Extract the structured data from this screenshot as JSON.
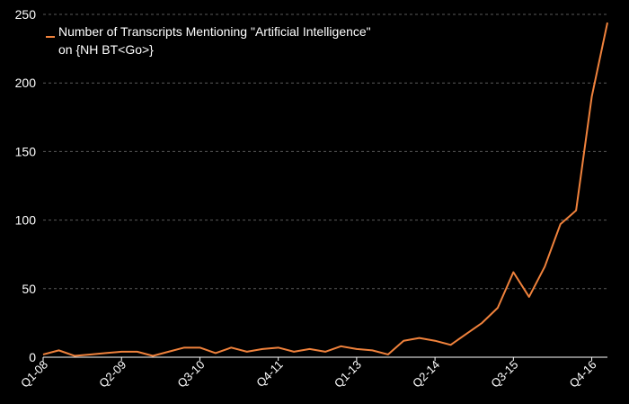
{
  "colors": {
    "background": "#000000",
    "series_line": "#f0823c",
    "text": "#ffffff",
    "grid": "#5a5a5a"
  },
  "chart_data": {
    "type": "line",
    "title": "",
    "xlabel": "",
    "ylabel": "",
    "ylim": [
      0,
      250
    ],
    "yticks": [
      0,
      50,
      100,
      150,
      200,
      250
    ],
    "grid": "horizontal dashed",
    "legend_position": "top-left",
    "x": [
      "Q1-08",
      "Q2-08",
      "Q3-08",
      "Q4-08",
      "Q1-09",
      "Q2-09",
      "Q3-09",
      "Q4-09",
      "Q1-10",
      "Q2-10",
      "Q3-10",
      "Q4-10",
      "Q1-11",
      "Q2-11",
      "Q3-11",
      "Q4-11",
      "Q1-12",
      "Q2-12",
      "Q3-12",
      "Q4-12",
      "Q1-13",
      "Q2-13",
      "Q3-13",
      "Q4-13",
      "Q1-14",
      "Q2-14",
      "Q3-14",
      "Q4-14",
      "Q1-15",
      "Q2-15",
      "Q3-15",
      "Q4-15",
      "Q1-16",
      "Q2-16",
      "Q3-16",
      "Q4-16",
      "Q1-17"
    ],
    "xtick_labels": [
      "Q1-08",
      "Q2-09",
      "Q3-10",
      "Q4-11",
      "Q1-13",
      "Q2-14",
      "Q3-15",
      "Q4-16"
    ],
    "series": [
      {
        "name": "Number of Transcripts Mentioning \"Artificial Intelligence\" on {NH BT<Go>}",
        "legend_lines": [
          "Number of Transcripts Mentioning \"Artificial Intelligence\"",
          "on {NH BT<Go>}"
        ],
        "values": [
          2,
          5,
          1,
          2,
          3,
          4,
          4,
          1,
          4,
          7,
          7,
          3,
          7,
          4,
          6,
          7,
          4,
          6,
          4,
          8,
          6,
          5,
          2,
          12,
          14,
          12,
          9,
          17,
          25,
          36,
          62,
          44,
          66,
          97,
          107,
          190,
          244
        ]
      }
    ]
  }
}
